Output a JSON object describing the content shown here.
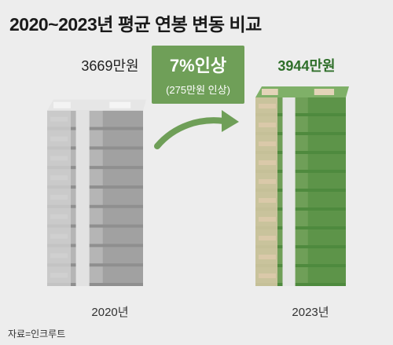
{
  "title": "2020~2023년 평균 연봉 변동 비교",
  "badge": {
    "main": "7%인상",
    "sub": "(275만원 인상)"
  },
  "source": "자료=인크루트",
  "colors": {
    "accent": "#6f9f58",
    "green_text": "#2f6f2a",
    "gray_stack": "#9a9a9a"
  },
  "chart_data": {
    "type": "bar",
    "title": "2020~2023년 평균 연봉 변동 비교",
    "categories": [
      "2020년",
      "2023년"
    ],
    "values": [
      3669,
      3944
    ],
    "value_labels": [
      "3669만원",
      "3944만원"
    ],
    "unit": "만원",
    "change": {
      "percent": 7,
      "amount": 275
    }
  }
}
